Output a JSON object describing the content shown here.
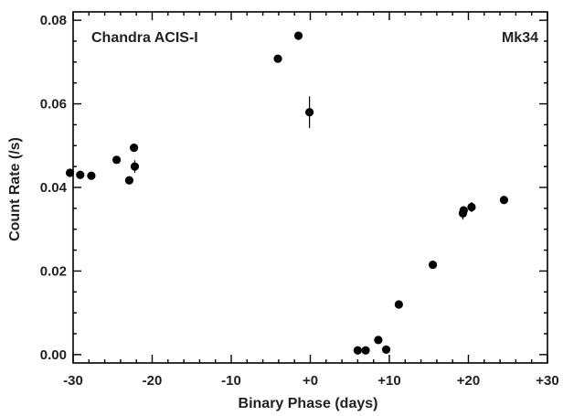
{
  "chart_data": {
    "type": "scatter",
    "title": "",
    "xlabel": "Binary Phase (days)",
    "ylabel": "Count Rate (/s)",
    "xlim": [
      -30,
      30
    ],
    "ylim": [
      -0.002,
      0.082
    ],
    "x_ticks": [
      -30,
      -20,
      -10,
      0,
      10,
      20,
      30
    ],
    "x_tick_labels": [
      "-30",
      "-20",
      "-10",
      "+0",
      "+10",
      "+20",
      "+30"
    ],
    "y_ticks": [
      0.0,
      0.02,
      0.04,
      0.06,
      0.08
    ],
    "y_tick_labels": [
      "0.00",
      "0.02",
      "0.04",
      "0.06",
      "0.08"
    ],
    "grid": false,
    "annotations": {
      "instrument": "Chandra ACIS-I",
      "source": "Mk34"
    },
    "series": [
      {
        "points": [
          {
            "x": -30.4,
            "y": 0.0435,
            "err": 0.0008
          },
          {
            "x": -29.1,
            "y": 0.043,
            "err": 0.0008
          },
          {
            "x": -27.7,
            "y": 0.0428,
            "err": 0.0007
          },
          {
            "x": -24.5,
            "y": 0.0466,
            "err": 0.0009
          },
          {
            "x": -22.9,
            "y": 0.0417,
            "err": 0.0008
          },
          {
            "x": -22.3,
            "y": 0.0495,
            "err": 0.001
          },
          {
            "x": -22.2,
            "y": 0.045,
            "err": 0.0015
          },
          {
            "x": -4.1,
            "y": 0.0708,
            "err": 0.0008
          },
          {
            "x": -1.5,
            "y": 0.0763,
            "err": 0.001
          },
          {
            "x": -0.1,
            "y": 0.058,
            "err": 0.0038
          },
          {
            "x": 6.0,
            "y": 0.001,
            "err": 0.0002
          },
          {
            "x": 7.0,
            "y": 0.001,
            "err": 0.0002
          },
          {
            "x": 8.6,
            "y": 0.0035,
            "err": 0.0003
          },
          {
            "x": 9.6,
            "y": 0.0012,
            "err": 0.0002
          },
          {
            "x": 11.2,
            "y": 0.012,
            "err": 0.0004
          },
          {
            "x": 15.5,
            "y": 0.0215,
            "err": 0.0005
          },
          {
            "x": 19.3,
            "y": 0.0338,
            "err": 0.0015
          },
          {
            "x": 19.4,
            "y": 0.0345,
            "err": 0.001
          },
          {
            "x": 20.4,
            "y": 0.0353,
            "err": 0.0012
          },
          {
            "x": 24.5,
            "y": 0.037,
            "err": 0.0008
          }
        ]
      }
    ]
  }
}
